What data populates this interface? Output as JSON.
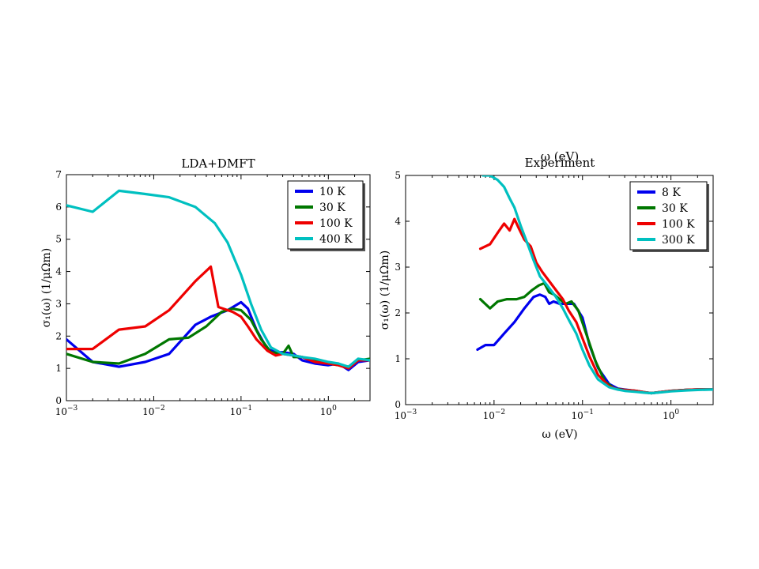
{
  "chart_data": [
    {
      "type": "line",
      "title": "LDA+DMFT",
      "xlabel": "",
      "ylabel": "σ₁(ω) (1/μΩm)",
      "xscale": "log",
      "xlim": [
        0.001,
        3
      ],
      "ylim": [
        0,
        7
      ],
      "xticks": [
        {
          "value": 0.001,
          "base": "10",
          "exp": "−3"
        },
        {
          "value": 0.01,
          "base": "10",
          "exp": "−2"
        },
        {
          "value": 0.1,
          "base": "10",
          "exp": "−1"
        },
        {
          "value": 1,
          "base": "10",
          "exp": "0"
        }
      ],
      "yticks": [
        0,
        1,
        2,
        3,
        4,
        5,
        6,
        7
      ],
      "legend_position": "top-right",
      "series": [
        {
          "name": "10 K",
          "color": "#0000ee",
          "x": [
            0.001,
            0.002,
            0.004,
            0.008,
            0.015,
            0.03,
            0.045,
            0.07,
            0.1,
            0.12,
            0.15,
            0.2,
            0.25,
            0.3,
            0.4,
            0.5,
            0.7,
            1.0,
            1.3,
            1.7,
            2.2,
            3
          ],
          "y": [
            1.9,
            1.2,
            1.05,
            1.2,
            1.45,
            2.35,
            2.6,
            2.8,
            3.05,
            2.85,
            2.2,
            1.6,
            1.5,
            1.5,
            1.45,
            1.25,
            1.15,
            1.1,
            1.15,
            0.95,
            1.2,
            1.25
          ]
        },
        {
          "name": "30 K",
          "color": "#007700",
          "x": [
            0.001,
            0.002,
            0.004,
            0.008,
            0.015,
            0.025,
            0.04,
            0.06,
            0.08,
            0.1,
            0.13,
            0.17,
            0.22,
            0.3,
            0.35,
            0.4,
            0.5,
            0.7,
            1.0,
            1.3,
            1.7,
            2.2,
            3
          ],
          "y": [
            1.45,
            1.2,
            1.15,
            1.45,
            1.9,
            1.95,
            2.3,
            2.75,
            2.85,
            2.8,
            2.5,
            1.9,
            1.5,
            1.45,
            1.7,
            1.35,
            1.35,
            1.25,
            1.15,
            1.1,
            1.05,
            1.25,
            1.3
          ]
        },
        {
          "name": "100 K",
          "color": "#ee0000",
          "x": [
            0.001,
            0.002,
            0.004,
            0.008,
            0.015,
            0.03,
            0.045,
            0.055,
            0.08,
            0.1,
            0.12,
            0.15,
            0.2,
            0.25,
            0.3,
            0.4,
            0.5,
            0.7,
            1.0,
            1.3,
            1.7,
            2.2,
            3
          ],
          "y": [
            1.6,
            1.6,
            2.2,
            2.3,
            2.8,
            3.7,
            4.15,
            2.9,
            2.75,
            2.6,
            2.3,
            1.9,
            1.55,
            1.4,
            1.45,
            1.4,
            1.35,
            1.2,
            1.15,
            1.1,
            1.0,
            1.25,
            1.25
          ]
        },
        {
          "name": "400 K",
          "color": "#00c0c0",
          "x": [
            0.001,
            0.002,
            0.004,
            0.008,
            0.015,
            0.03,
            0.05,
            0.07,
            0.1,
            0.13,
            0.17,
            0.22,
            0.3,
            0.4,
            0.5,
            0.7,
            1.0,
            1.3,
            1.7,
            2.2,
            3
          ],
          "y": [
            6.05,
            5.85,
            6.5,
            6.4,
            6.3,
            6.0,
            5.5,
            4.9,
            3.9,
            3.0,
            2.2,
            1.65,
            1.45,
            1.4,
            1.35,
            1.3,
            1.2,
            1.15,
            1.05,
            1.3,
            1.25
          ]
        }
      ]
    },
    {
      "type": "line",
      "title": "Experiment",
      "overlay_text": "ω (eV)",
      "xlabel": "ω (eV)",
      "ylabel": "σ₁(ω) (1/μΩm)",
      "xscale": "log",
      "xlim": [
        0.001,
        3
      ],
      "ylim": [
        0,
        5
      ],
      "xticks": [
        {
          "value": 0.001,
          "base": "10",
          "exp": "−3"
        },
        {
          "value": 0.01,
          "base": "10",
          "exp": "−2"
        },
        {
          "value": 0.1,
          "base": "10",
          "exp": "−1"
        },
        {
          "value": 1,
          "base": "10",
          "exp": "0"
        }
      ],
      "yticks": [
        0,
        1,
        2,
        3,
        4,
        5
      ],
      "legend_position": "top-right",
      "series": [
        {
          "name": "8 K",
          "color": "#0000ee",
          "x": [
            0.0065,
            0.008,
            0.01,
            0.013,
            0.017,
            0.022,
            0.028,
            0.033,
            0.038,
            0.042,
            0.047,
            0.055,
            0.065,
            0.08,
            0.1,
            0.12,
            0.15,
            0.2,
            0.25,
            0.3,
            0.4,
            0.5,
            0.6,
            0.8,
            1.0,
            1.5,
            2.0,
            3.0
          ],
          "y": [
            1.2,
            1.3,
            1.3,
            1.55,
            1.8,
            2.1,
            2.35,
            2.4,
            2.35,
            2.2,
            2.25,
            2.2,
            2.2,
            2.2,
            1.9,
            1.3,
            0.8,
            0.45,
            0.35,
            0.33,
            0.3,
            0.27,
            0.25,
            0.28,
            0.3,
            0.32,
            0.33,
            0.33
          ]
        },
        {
          "name": "30 K",
          "color": "#007700",
          "x": [
            0.007,
            0.009,
            0.011,
            0.014,
            0.018,
            0.022,
            0.027,
            0.032,
            0.037,
            0.042,
            0.048,
            0.055,
            0.065,
            0.075,
            0.09,
            0.11,
            0.14,
            0.18,
            0.23,
            0.3,
            0.4,
            0.5,
            0.6,
            0.8,
            1.0,
            1.5,
            2.0,
            3.0
          ],
          "y": [
            2.3,
            2.1,
            2.25,
            2.3,
            2.3,
            2.35,
            2.5,
            2.6,
            2.65,
            2.45,
            2.4,
            2.3,
            2.2,
            2.25,
            2.05,
            1.55,
            0.95,
            0.5,
            0.35,
            0.32,
            0.3,
            0.27,
            0.25,
            0.28,
            0.3,
            0.32,
            0.33,
            0.33
          ]
        },
        {
          "name": "100 K",
          "color": "#ee0000",
          "x": [
            0.007,
            0.009,
            0.011,
            0.013,
            0.015,
            0.017,
            0.019,
            0.022,
            0.026,
            0.03,
            0.035,
            0.04,
            0.05,
            0.06,
            0.07,
            0.085,
            0.1,
            0.12,
            0.15,
            0.2,
            0.25,
            0.3,
            0.4,
            0.5,
            0.6,
            0.8,
            1.0,
            1.5,
            2.0,
            3.0
          ],
          "y": [
            3.4,
            3.5,
            3.75,
            3.95,
            3.8,
            4.05,
            3.85,
            3.6,
            3.45,
            3.1,
            2.9,
            2.75,
            2.5,
            2.3,
            2.05,
            1.8,
            1.45,
            1.05,
            0.65,
            0.4,
            0.33,
            0.32,
            0.3,
            0.27,
            0.25,
            0.28,
            0.3,
            0.32,
            0.33,
            0.33
          ]
        },
        {
          "name": "300 K",
          "color": "#00c0c0",
          "x": [
            0.0075,
            0.009,
            0.011,
            0.013,
            0.015,
            0.017,
            0.02,
            0.024,
            0.028,
            0.033,
            0.04,
            0.05,
            0.06,
            0.07,
            0.085,
            0.1,
            0.12,
            0.15,
            0.2,
            0.25,
            0.3,
            0.4,
            0.5,
            0.6,
            0.8,
            1.0,
            1.5,
            2.0,
            3.0
          ],
          "y": [
            5.0,
            5.0,
            4.9,
            4.75,
            4.5,
            4.3,
            3.9,
            3.5,
            3.15,
            2.8,
            2.6,
            2.35,
            2.1,
            1.85,
            1.55,
            1.2,
            0.85,
            0.55,
            0.38,
            0.33,
            0.3,
            0.28,
            0.26,
            0.25,
            0.27,
            0.29,
            0.31,
            0.32,
            0.33
          ]
        }
      ]
    }
  ]
}
